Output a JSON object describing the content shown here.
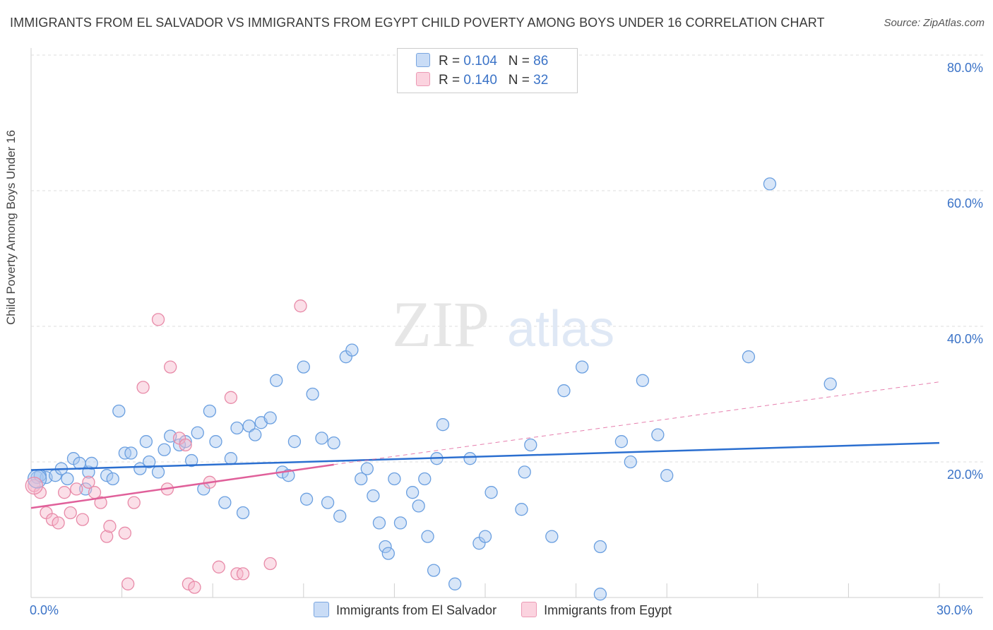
{
  "header": {
    "title": "IMMIGRANTS FROM EL SALVADOR VS IMMIGRANTS FROM EGYPT CHILD POVERTY AMONG BOYS UNDER 16 CORRELATION CHART",
    "source": "Source: ZipAtlas.com"
  },
  "watermark": {
    "zip": "ZIP",
    "atlas": "atlas"
  },
  "legend": {
    "rows": [
      {
        "r_label": "R = ",
        "r_value": "0.104",
        "n_label": "N = ",
        "n_value": "86",
        "color": "#a9c8f0"
      },
      {
        "r_label": "R = ",
        "r_value": "0.140",
        "n_label": "N = ",
        "n_value": "32",
        "color": "#f7b8cb"
      }
    ]
  },
  "chart_data": {
    "type": "scatter",
    "title": "IMMIGRANTS FROM EL SALVADOR VS IMMIGRANTS FROM EGYPT CHILD POVERTY AMONG BOYS UNDER 16 CORRELATION CHART",
    "xlabel": "",
    "ylabel": "Child Poverty Among Boys Under 16",
    "xlim": [
      0,
      30
    ],
    "ylim": [
      0,
      80
    ],
    "x_tick_labels": [
      "0.0%",
      "30.0%"
    ],
    "y_tick_labels": [
      "20.0%",
      "40.0%",
      "60.0%",
      "80.0%"
    ],
    "y_ticks": [
      20,
      40,
      60,
      80
    ],
    "grid": true,
    "legend_position": "top-center",
    "series": [
      {
        "name": "Immigrants from El Salvador",
        "color": "#6a9fe0",
        "fill": "#a9c8f0",
        "trend": {
          "x": [
            0,
            30
          ],
          "y": [
            18.8,
            22.8
          ],
          "color": "#2b6fd0"
        },
        "points": [
          [
            0.2,
            17.7
          ],
          [
            0.5,
            17.7
          ],
          [
            0.8,
            18.0
          ],
          [
            1.0,
            19.0
          ],
          [
            1.2,
            17.5
          ],
          [
            1.4,
            20.5
          ],
          [
            1.6,
            19.8
          ],
          [
            1.8,
            16.0
          ],
          [
            1.9,
            18.5
          ],
          [
            2.0,
            19.8
          ],
          [
            2.5,
            18.0
          ],
          [
            2.7,
            17.5
          ],
          [
            2.9,
            27.5
          ],
          [
            3.1,
            21.3
          ],
          [
            3.3,
            21.3
          ],
          [
            3.6,
            19.0
          ],
          [
            3.8,
            23.0
          ],
          [
            3.9,
            20.0
          ],
          [
            4.2,
            18.5
          ],
          [
            4.4,
            21.8
          ],
          [
            4.6,
            23.8
          ],
          [
            4.9,
            22.5
          ],
          [
            5.1,
            23.0
          ],
          [
            5.3,
            20.2
          ],
          [
            5.5,
            24.3
          ],
          [
            5.7,
            16.0
          ],
          [
            5.9,
            27.5
          ],
          [
            6.1,
            23.0
          ],
          [
            6.4,
            14.0
          ],
          [
            6.6,
            20.5
          ],
          [
            6.8,
            25.0
          ],
          [
            7.0,
            12.5
          ],
          [
            7.2,
            25.3
          ],
          [
            7.4,
            24.0
          ],
          [
            7.6,
            25.8
          ],
          [
            7.9,
            26.5
          ],
          [
            8.1,
            32.0
          ],
          [
            8.3,
            18.5
          ],
          [
            8.5,
            18.0
          ],
          [
            8.7,
            23.0
          ],
          [
            9.0,
            34.0
          ],
          [
            9.1,
            14.5
          ],
          [
            9.3,
            30.0
          ],
          [
            9.6,
            23.5
          ],
          [
            9.8,
            14.0
          ],
          [
            10.0,
            22.8
          ],
          [
            10.2,
            12.0
          ],
          [
            10.4,
            35.5
          ],
          [
            10.6,
            36.5
          ],
          [
            10.9,
            17.5
          ],
          [
            11.1,
            19.0
          ],
          [
            11.3,
            15.0
          ],
          [
            11.5,
            11.0
          ],
          [
            11.7,
            7.5
          ],
          [
            11.8,
            6.5
          ],
          [
            12.0,
            17.5
          ],
          [
            12.2,
            11.0
          ],
          [
            12.6,
            15.5
          ],
          [
            12.8,
            13.5
          ],
          [
            13.0,
            17.5
          ],
          [
            13.1,
            9.0
          ],
          [
            13.3,
            4.0
          ],
          [
            13.4,
            20.5
          ],
          [
            13.6,
            25.5
          ],
          [
            14.0,
            2.0
          ],
          [
            14.5,
            20.5
          ],
          [
            14.8,
            8.0
          ],
          [
            15.0,
            9.0
          ],
          [
            15.2,
            15.5
          ],
          [
            16.2,
            13.0
          ],
          [
            16.3,
            18.5
          ],
          [
            16.5,
            22.5
          ],
          [
            17.2,
            9.0
          ],
          [
            17.6,
            30.5
          ],
          [
            18.2,
            34.0
          ],
          [
            18.8,
            7.5
          ],
          [
            18.8,
            0.5
          ],
          [
            19.5,
            23.0
          ],
          [
            19.8,
            20.0
          ],
          [
            20.2,
            32.0
          ],
          [
            20.7,
            24.0
          ],
          [
            21.0,
            18.0
          ],
          [
            23.7,
            35.5
          ],
          [
            24.4,
            61.0
          ],
          [
            26.4,
            31.5
          ],
          [
            0.3,
            18.0
          ]
        ]
      },
      {
        "name": "Immigrants from Egypt",
        "color": "#e88aa8",
        "fill": "#f7b8cb",
        "trend": {
          "x": [
            0,
            10
          ],
          "y": [
            13.2,
            19.6
          ],
          "color": "#e0609a",
          "dashed_extension": {
            "x": [
              10,
              30
            ],
            "y": [
              19.6,
              31.8
            ]
          }
        },
        "points": [
          [
            0.1,
            16.5
          ],
          [
            0.3,
            15.5
          ],
          [
            0.5,
            12.5
          ],
          [
            0.7,
            11.5
          ],
          [
            0.9,
            11.0
          ],
          [
            1.1,
            15.5
          ],
          [
            1.3,
            12.5
          ],
          [
            1.5,
            16.0
          ],
          [
            1.7,
            11.5
          ],
          [
            1.9,
            17.0
          ],
          [
            2.1,
            15.5
          ],
          [
            2.3,
            14.0
          ],
          [
            2.5,
            9.0
          ],
          [
            2.6,
            10.5
          ],
          [
            3.1,
            9.5
          ],
          [
            3.2,
            2.0
          ],
          [
            3.4,
            14.0
          ],
          [
            3.7,
            31.0
          ],
          [
            4.2,
            41.0
          ],
          [
            4.5,
            16.0
          ],
          [
            4.6,
            34.0
          ],
          [
            4.9,
            23.5
          ],
          [
            5.1,
            22.5
          ],
          [
            5.2,
            2.0
          ],
          [
            5.4,
            1.5
          ],
          [
            5.9,
            17.0
          ],
          [
            6.2,
            4.5
          ],
          [
            6.6,
            29.5
          ],
          [
            6.8,
            3.5
          ],
          [
            7.0,
            3.5
          ],
          [
            7.9,
            5.0
          ],
          [
            8.9,
            43.0
          ]
        ]
      }
    ]
  },
  "bottom_legend": [
    {
      "label": "Immigrants from El Salvador",
      "color": "#a9c8f0"
    },
    {
      "label": "Immigrants from Egypt",
      "color": "#f7b8cb"
    }
  ]
}
